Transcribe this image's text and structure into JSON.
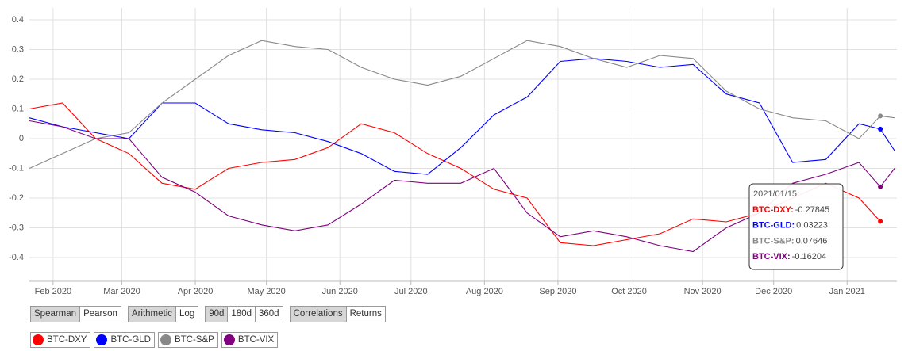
{
  "chart_data": {
    "type": "line",
    "x": [
      "2020-01-22",
      "2020-02-05",
      "2020-02-19",
      "2020-03-04",
      "2020-03-18",
      "2020-04-01",
      "2020-04-15",
      "2020-04-29",
      "2020-05-13",
      "2020-05-27",
      "2020-06-10",
      "2020-06-24",
      "2020-07-08",
      "2020-07-22",
      "2020-08-05",
      "2020-08-19",
      "2020-09-02",
      "2020-09-16",
      "2020-09-30",
      "2020-10-14",
      "2020-10-28",
      "2020-11-11",
      "2020-11-25",
      "2020-12-09",
      "2020-12-23",
      "2021-01-06",
      "2021-01-15",
      "2021-01-21"
    ],
    "xlim": [
      "2020-01-22",
      "2021-01-22"
    ],
    "xticks": [
      {
        "value": "2020-02-01",
        "label": "Feb 2020"
      },
      {
        "value": "2020-03-01",
        "label": "Mar 2020"
      },
      {
        "value": "2020-04-01",
        "label": "Apr 2020"
      },
      {
        "value": "2020-05-01",
        "label": "May 2020"
      },
      {
        "value": "2020-06-01",
        "label": "Jun 2020"
      },
      {
        "value": "2020-07-01",
        "label": "Jul 2020"
      },
      {
        "value": "2020-08-01",
        "label": "Aug 2020"
      },
      {
        "value": "2020-09-01",
        "label": "Sep 2020"
      },
      {
        "value": "2020-10-01",
        "label": "Oct 2020"
      },
      {
        "value": "2020-11-01",
        "label": "Nov 2020"
      },
      {
        "value": "2020-12-01",
        "label": "Dec 2020"
      },
      {
        "value": "2021-01-01",
        "label": "Jan 2021"
      }
    ],
    "ylim": [
      -0.48,
      0.44
    ],
    "yticks": [
      0.4,
      0.3,
      0.2,
      0.1,
      0,
      -0.1,
      -0.2,
      -0.3,
      -0.4
    ],
    "grid": true,
    "series": [
      {
        "name": "BTC-DXY",
        "color": "#ff0000",
        "values": [
          0.1,
          0.12,
          0.0,
          -0.05,
          -0.15,
          -0.17,
          -0.1,
          -0.08,
          -0.07,
          -0.03,
          0.05,
          0.02,
          -0.05,
          -0.1,
          -0.17,
          -0.2,
          -0.35,
          -0.36,
          -0.34,
          -0.32,
          -0.27,
          -0.28,
          -0.25,
          -0.2,
          -0.15,
          -0.2,
          -0.27845,
          null
        ]
      },
      {
        "name": "BTC-GLD",
        "color": "#0000ff",
        "values": [
          0.07,
          0.04,
          0.02,
          0.0,
          0.12,
          0.12,
          0.05,
          0.03,
          0.02,
          -0.01,
          -0.05,
          -0.11,
          -0.12,
          -0.03,
          0.08,
          0.14,
          0.26,
          0.27,
          0.26,
          0.24,
          0.25,
          0.15,
          0.12,
          -0.08,
          -0.07,
          0.05,
          0.03223,
          -0.04
        ]
      },
      {
        "name": "BTC-S&P",
        "color": "#888888",
        "values": [
          -0.1,
          -0.05,
          0.0,
          0.02,
          0.12,
          0.2,
          0.28,
          0.33,
          0.31,
          0.3,
          0.24,
          0.2,
          0.18,
          0.21,
          0.27,
          0.33,
          0.31,
          0.27,
          0.24,
          0.28,
          0.27,
          0.16,
          0.1,
          0.07,
          0.06,
          0.0,
          0.07646,
          0.07
        ]
      },
      {
        "name": "BTC-VIX",
        "color": "#800080",
        "values": [
          0.06,
          0.04,
          0.0,
          0.0,
          -0.13,
          -0.18,
          -0.26,
          -0.29,
          -0.31,
          -0.29,
          -0.22,
          -0.14,
          -0.15,
          -0.15,
          -0.1,
          -0.25,
          -0.33,
          -0.31,
          -0.33,
          -0.36,
          -0.38,
          -0.3,
          -0.25,
          -0.15,
          -0.12,
          -0.08,
          -0.16204,
          -0.1
        ]
      }
    ],
    "tooltip": {
      "title": "2021/01/15:",
      "labels": [
        "BTC-DXY:",
        "BTC-GLD:",
        "BTC-S&P:",
        "BTC-VIX:"
      ]
    }
  },
  "controls": [
    [
      "Spearman",
      "Pearson"
    ],
    [
      "Arithmetic",
      "Log"
    ],
    [
      "90d",
      "180d",
      "360d"
    ],
    [
      "Correlations",
      "Returns"
    ]
  ]
}
